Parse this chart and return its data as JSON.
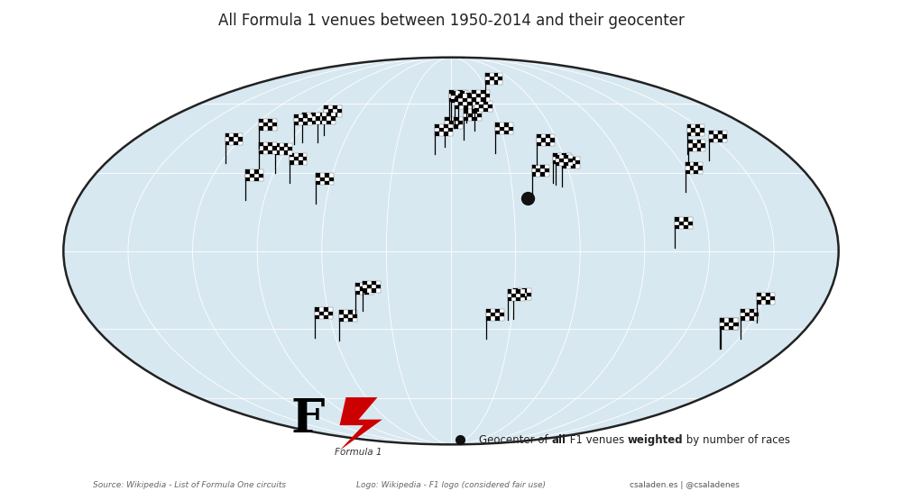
{
  "title": "All Formula 1 venues between 1950-2014 and their geocenter",
  "title_fontsize": 12,
  "background_color": "#ffffff",
  "map_ocean_color": "#d8e8f0",
  "map_land_color": "#bbbbbb",
  "map_grid_color": "#ffffff",
  "map_border_color": "#222222",
  "geocenter_lon": 37.0,
  "geocenter_lat": 20.0,
  "geocenter_color": "#111111",
  "geocenter_size": 100,
  "venues": [
    {
      "lon": -80.2,
      "lat": 25.9
    },
    {
      "lon": -89.4,
      "lat": 29.9
    },
    {
      "lon": -97.6,
      "lat": 30.1
    },
    {
      "lon": -104.9,
      "lat": 39.7
    },
    {
      "lon": -73.5,
      "lat": 45.5
    },
    {
      "lon": -74.6,
      "lat": 42.3
    },
    {
      "lon": -83.5,
      "lat": 42.3
    },
    {
      "lon": -87.5,
      "lat": 41.7
    },
    {
      "lon": -117.6,
      "lat": 33.7
    },
    {
      "lon": -99.1,
      "lat": 19.4
    },
    {
      "lon": -64.7,
      "lat": 18.0
    },
    {
      "lon": -58.4,
      "lat": -34.5
    },
    {
      "lon": -46.7,
      "lat": -23.7
    },
    {
      "lon": -43.2,
      "lat": -22.9
    },
    {
      "lon": -70.6,
      "lat": -33.4
    },
    {
      "lon": -3.6,
      "lat": 40.5
    },
    {
      "lon": -8.5,
      "lat": 37.5
    },
    {
      "lon": -1.0,
      "lat": 52.1
    },
    {
      "lon": -0.1,
      "lat": 51.5
    },
    {
      "lon": 2.3,
      "lat": 48.8
    },
    {
      "lon": 7.4,
      "lat": 43.7
    },
    {
      "lon": 9.7,
      "lat": 50.9
    },
    {
      "lon": 14.0,
      "lat": 47.5
    },
    {
      "lon": 4.3,
      "lat": 50.4
    },
    {
      "lon": 13.2,
      "lat": 52.2
    },
    {
      "lon": 24.5,
      "lat": 60.3
    },
    {
      "lon": 23.8,
      "lat": 38.0
    },
    {
      "lon": 50.5,
      "lat": 26.0
    },
    {
      "lon": 54.6,
      "lat": 24.5
    },
    {
      "lon": 39.2,
      "lat": 21.4
    },
    {
      "lon": 51.5,
      "lat": 25.3
    },
    {
      "lon": 44.4,
      "lat": 33.3
    },
    {
      "lon": 103.9,
      "lat": 1.3
    },
    {
      "lon": 121.2,
      "lat": 31.2
    },
    {
      "lon": 114.1,
      "lat": 22.3
    },
    {
      "lon": 126.4,
      "lat": 37.4
    },
    {
      "lon": 135.5,
      "lat": 34.8
    },
    {
      "lon": 144.9,
      "lat": -37.8
    },
    {
      "lon": 144.7,
      "lat": -37.8
    },
    {
      "lon": 151.1,
      "lat": -33.9
    },
    {
      "lon": 153.1,
      "lat": -27.5
    },
    {
      "lon": 31.0,
      "lat": -25.9
    },
    {
      "lon": 28.0,
      "lat": -26.2
    },
    {
      "lon": 18.5,
      "lat": -33.9
    }
  ],
  "footer_source": "Source: Wikipedia - List of Formula One circuits",
  "footer_logo": "Logo: Wikipedia - F1 logo (considered fair use)",
  "footer_right": "csaladen.es | @csaladenes"
}
